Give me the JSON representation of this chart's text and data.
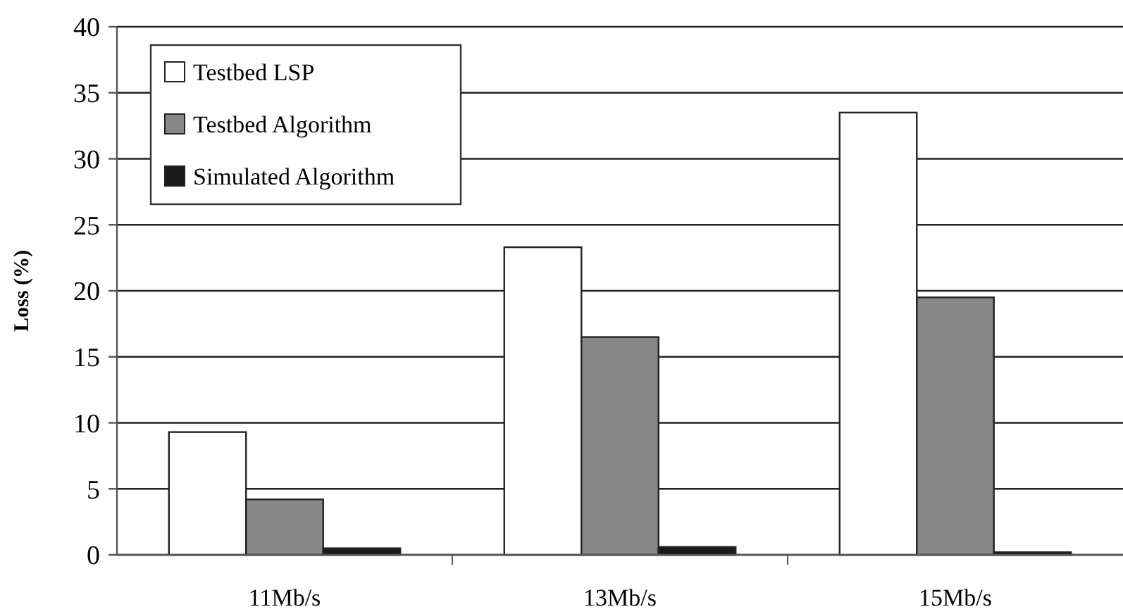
{
  "chart_data": {
    "type": "bar",
    "ylabel": "Loss (%)",
    "categories": [
      "11Mb/s",
      "13Mb/s",
      "15Mb/s"
    ],
    "series": [
      {
        "name": "Testbed LSP",
        "color": "#ffffff",
        "values": [
          9.3,
          23.3,
          33.5
        ]
      },
      {
        "name": "Testbed Algorithm",
        "color": "#878787",
        "values": [
          4.2,
          16.5,
          19.5
        ]
      },
      {
        "name": "Simulated Algorithm",
        "color": "#1a1a1a",
        "values": [
          0.5,
          0.6,
          0.2
        ]
      }
    ],
    "ylim": [
      0,
      40
    ],
    "yticks": [
      0,
      5,
      10,
      15,
      20,
      25,
      30,
      35,
      40
    ],
    "grid": "y",
    "legend": "top left"
  }
}
